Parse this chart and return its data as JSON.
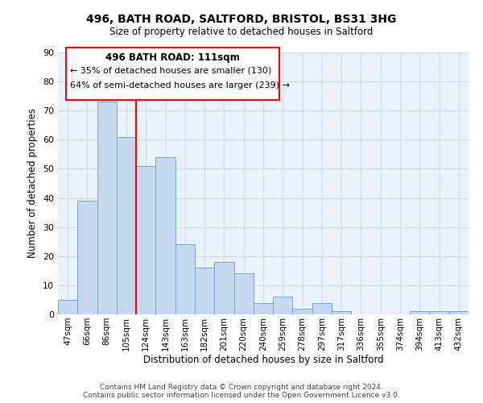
{
  "title": "496, BATH ROAD, SALTFORD, BRISTOL, BS31 3HG",
  "subtitle": "Size of property relative to detached houses in Saltford",
  "xlabel": "Distribution of detached houses by size in Saltford",
  "ylabel": "Number of detached properties",
  "categories": [
    "47sqm",
    "66sqm",
    "86sqm",
    "105sqm",
    "124sqm",
    "143sqm",
    "163sqm",
    "182sqm",
    "201sqm",
    "220sqm",
    "240sqm",
    "259sqm",
    "278sqm",
    "297sqm",
    "317sqm",
    "336sqm",
    "355sqm",
    "374sqm",
    "394sqm",
    "413sqm",
    "432sqm"
  ],
  "values": [
    5,
    39,
    73,
    61,
    51,
    54,
    24,
    16,
    18,
    14,
    4,
    6,
    2,
    4,
    1,
    0,
    0,
    0,
    1,
    1,
    1
  ],
  "bar_color": "#c5d8f0",
  "bar_edge_color": "#6fa8d4",
  "grid_color": "#d0dce8",
  "background_color": "#eaf1f8",
  "red_line_x": 3.5,
  "annotation_title": "496 BATH ROAD: 111sqm",
  "annotation_line1": "← 35% of detached houses are smaller (130)",
  "annotation_line2": "64% of semi-detached houses are larger (239) →",
  "ylim": [
    0,
    90
  ],
  "yticks": [
    0,
    10,
    20,
    30,
    40,
    50,
    60,
    70,
    80,
    90
  ],
  "footer1": "Contains HM Land Registry data © Crown copyright and database right 2024.",
  "footer2": "Contains public sector information licensed under the Open Government Licence v3.0."
}
